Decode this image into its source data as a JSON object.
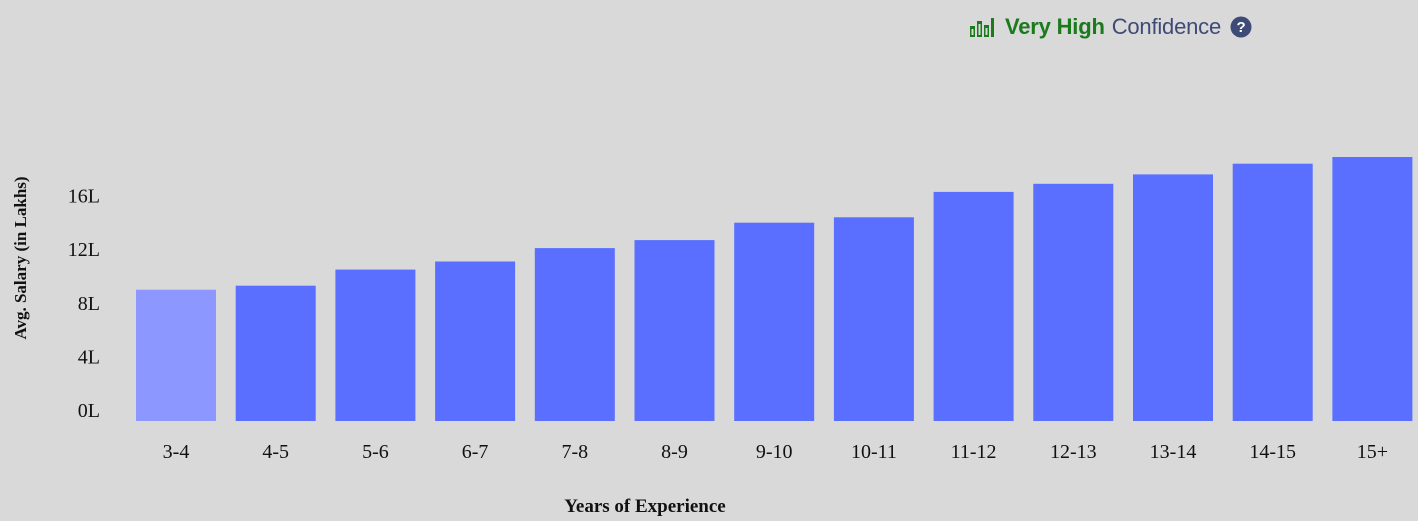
{
  "confidence": {
    "level": "Very High",
    "word": "Confidence",
    "level_color": "#1b7a1b",
    "word_color": "#3f4b77",
    "icon": "bar-chart-icon",
    "help_icon": "question-circle-icon"
  },
  "chart_data": {
    "type": "bar",
    "title": "",
    "xlabel": "Years of Experience",
    "ylabel": "Avg. Salary (in Lakhs)",
    "categories": [
      "3-4",
      "4-5",
      "5-6",
      "6-7",
      "7-8",
      "8-9",
      "9-10",
      "10-11",
      "11-12",
      "12-13",
      "13-14",
      "14-15",
      "15+"
    ],
    "values": [
      9.8,
      10.1,
      11.3,
      11.9,
      12.9,
      13.5,
      14.8,
      15.2,
      17.1,
      17.7,
      18.4,
      19.2,
      19.7
    ],
    "ylim": [
      0,
      20
    ],
    "yticks": [
      {
        "value": 0,
        "label": "0L"
      },
      {
        "value": 4,
        "label": "4L"
      },
      {
        "value": 8,
        "label": "8L"
      },
      {
        "value": 12,
        "label": "12L"
      },
      {
        "value": 16,
        "label": "16L"
      }
    ],
    "grid": false,
    "highlighted_category": "3-4",
    "bar_color": "#5a6fff",
    "highlight_color": "#8c97ff"
  }
}
